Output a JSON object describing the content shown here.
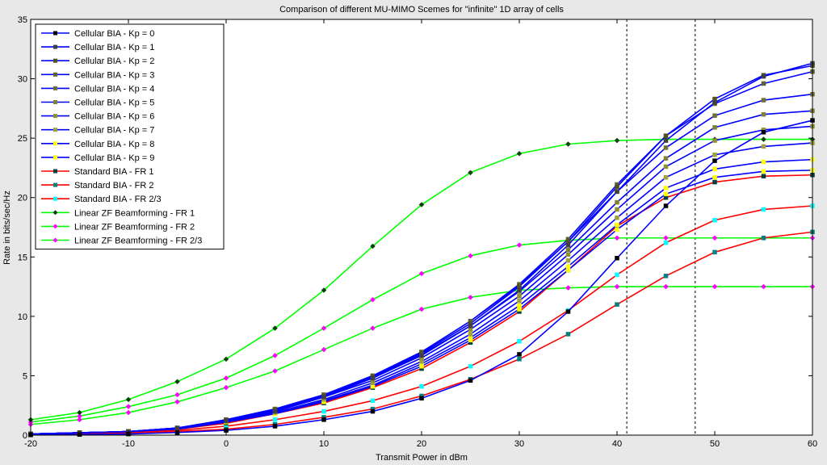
{
  "chart_data": {
    "type": "line",
    "title": "Comparison of different MU-MIMO Scemes for \"infinite\" 1D array of cells",
    "xlabel": "Transmit Power in dBm",
    "ylabel": "Rate in bits/sec/Hz",
    "xlim": [
      -20,
      60
    ],
    "ylim": [
      0,
      35
    ],
    "xticks": [
      -20,
      -10,
      0,
      10,
      20,
      30,
      40,
      50,
      60
    ],
    "yticks": [
      0,
      5,
      10,
      15,
      20,
      25,
      30,
      35
    ],
    "grid": false,
    "legend_position": "top-left",
    "vlines": [
      41,
      48
    ],
    "series": [
      {
        "name": "Cellular BIA - Kp = 0",
        "color": "#0000ff",
        "marker_color": "#000000",
        "marker": "square",
        "x": [
          -20,
          -15,
          -10,
          -5,
          0,
          5,
          10,
          15,
          20,
          25,
          30,
          35,
          40,
          45,
          50,
          55,
          60
        ],
        "y": [
          0.02,
          0.05,
          0.1,
          0.22,
          0.4,
          0.75,
          1.3,
          2.0,
          3.1,
          4.6,
          6.8,
          10.4,
          14.9,
          19.3,
          23.1,
          25.5,
          26.5
        ]
      },
      {
        "name": "Cellular BIA - Kp = 1",
        "color": "#0000ff",
        "marker_color": "#404040",
        "marker": "square",
        "x": [
          -20,
          -15,
          -10,
          -5,
          0,
          5,
          10,
          15,
          20,
          25,
          30,
          35,
          40,
          45,
          50,
          55,
          60
        ],
        "y": [
          0.1,
          0.2,
          0.3,
          0.6,
          1.2,
          2.0,
          3.2,
          4.8,
          6.7,
          9.2,
          12.2,
          16.0,
          20.5,
          24.8,
          28.0,
          30.2,
          31.3
        ]
      },
      {
        "name": "Cellular BIA - Kp = 2",
        "color": "#0000ff",
        "marker_color": "#505020",
        "marker": "square",
        "x": [
          -20,
          -15,
          -10,
          -5,
          0,
          5,
          10,
          15,
          20,
          25,
          30,
          35,
          40,
          45,
          50,
          55,
          60
        ],
        "y": [
          0.1,
          0.2,
          0.3,
          0.6,
          1.25,
          2.1,
          3.3,
          4.9,
          6.9,
          9.4,
          12.5,
          16.3,
          20.9,
          25.2,
          28.3,
          30.3,
          31.1
        ]
      },
      {
        "name": "Cellular BIA - Kp = 3",
        "color": "#0000ff",
        "marker_color": "#606030",
        "marker": "square",
        "x": [
          -20,
          -15,
          -10,
          -5,
          0,
          5,
          10,
          15,
          20,
          25,
          30,
          35,
          40,
          45,
          50,
          55,
          60
        ],
        "y": [
          0.1,
          0.2,
          0.3,
          0.6,
          1.3,
          2.2,
          3.4,
          5.0,
          7.0,
          9.6,
          12.7,
          16.5,
          21.1,
          25.2,
          27.9,
          29.6,
          30.6
        ]
      },
      {
        "name": "Cellular BIA - Kp = 4",
        "color": "#0000ff",
        "marker_color": "#707030",
        "marker": "square",
        "x": [
          -20,
          -15,
          -10,
          -5,
          0,
          5,
          10,
          15,
          20,
          25,
          30,
          35,
          40,
          45,
          50,
          55,
          60
        ],
        "y": [
          0.1,
          0.2,
          0.3,
          0.6,
          1.3,
          2.2,
          3.4,
          5.0,
          7.0,
          9.6,
          12.6,
          16.3,
          20.5,
          24.2,
          26.9,
          28.2,
          28.7
        ]
      },
      {
        "name": "Cellular BIA - Kp = 5",
        "color": "#0000ff",
        "marker_color": "#808030",
        "marker": "square",
        "x": [
          -20,
          -15,
          -10,
          -5,
          0,
          5,
          10,
          15,
          20,
          25,
          30,
          35,
          40,
          45,
          50,
          55,
          60
        ],
        "y": [
          0.1,
          0.2,
          0.3,
          0.6,
          1.25,
          2.1,
          3.3,
          4.8,
          6.8,
          9.2,
          12.1,
          15.6,
          19.6,
          23.3,
          25.9,
          27.0,
          27.3
        ]
      },
      {
        "name": "Cellular BIA - Kp = 6",
        "color": "#0000ff",
        "marker_color": "#909030",
        "marker": "square",
        "x": [
          -20,
          -15,
          -10,
          -5,
          0,
          5,
          10,
          15,
          20,
          25,
          30,
          35,
          40,
          45,
          50,
          55,
          60
        ],
        "y": [
          0.1,
          0.2,
          0.3,
          0.55,
          1.2,
          2.0,
          3.2,
          4.6,
          6.5,
          8.9,
          11.7,
          15.2,
          19.0,
          22.6,
          24.8,
          25.7,
          26.0
        ]
      },
      {
        "name": "Cellular BIA - Kp = 7",
        "color": "#0000ff",
        "marker_color": "#a0a040",
        "marker": "square",
        "x": [
          -20,
          -15,
          -10,
          -5,
          0,
          5,
          10,
          15,
          20,
          25,
          30,
          35,
          40,
          45,
          50,
          55,
          60
        ],
        "y": [
          0.1,
          0.2,
          0.3,
          0.55,
          1.15,
          1.9,
          3.0,
          4.4,
          6.2,
          8.5,
          11.3,
          14.7,
          18.3,
          21.7,
          23.6,
          24.3,
          24.6
        ]
      },
      {
        "name": "Cellular BIA - Kp = 8",
        "color": "#0000ff",
        "marker_color": "#ffff00",
        "marker": "square",
        "x": [
          -20,
          -15,
          -10,
          -5,
          0,
          5,
          10,
          15,
          20,
          25,
          30,
          35,
          40,
          45,
          50,
          55,
          60
        ],
        "y": [
          0.1,
          0.2,
          0.3,
          0.5,
          1.1,
          1.8,
          2.9,
          4.2,
          6.0,
          8.2,
          10.9,
          14.2,
          17.7,
          20.8,
          22.4,
          23.0,
          23.2
        ]
      },
      {
        "name": "Cellular BIA - Kp = 9",
        "color": "#0000ff",
        "marker_color": "#ffff00",
        "marker": "square",
        "x": [
          -20,
          -15,
          -10,
          -5,
          0,
          5,
          10,
          15,
          20,
          25,
          30,
          35,
          40,
          45,
          50,
          55,
          60
        ],
        "y": [
          0.1,
          0.2,
          0.3,
          0.5,
          1.1,
          1.8,
          2.8,
          4.1,
          5.8,
          8.0,
          10.6,
          13.9,
          17.3,
          20.3,
          21.7,
          22.2,
          22.3
        ]
      },
      {
        "name": "Standard BIA - FR 1",
        "color": "#ff0000",
        "marker_color": "#004040",
        "marker": "square",
        "x": [
          -20,
          -15,
          -10,
          -5,
          0,
          5,
          10,
          15,
          20,
          25,
          30,
          35,
          40,
          45,
          50,
          55,
          60
        ],
        "y": [
          0.1,
          0.2,
          0.3,
          0.5,
          1.0,
          1.8,
          2.7,
          4.0,
          5.6,
          7.8,
          10.4,
          13.9,
          17.6,
          20.0,
          21.3,
          21.8,
          21.9
        ]
      },
      {
        "name": "Standard BIA - FR 2",
        "color": "#ff0000",
        "marker_color": "#008080",
        "marker": "square",
        "x": [
          -20,
          -15,
          -10,
          -5,
          0,
          5,
          10,
          15,
          20,
          25,
          30,
          35,
          40,
          45,
          50,
          55,
          60
        ],
        "y": [
          0.02,
          0.05,
          0.1,
          0.3,
          0.5,
          0.9,
          1.5,
          2.2,
          3.3,
          4.7,
          6.4,
          8.5,
          11.0,
          13.4,
          15.4,
          16.6,
          17.1
        ]
      },
      {
        "name": "Standard BIA - FR 2/3",
        "color": "#ff0000",
        "marker_color": "#00ffff",
        "marker": "square",
        "x": [
          -20,
          -15,
          -10,
          -5,
          0,
          5,
          10,
          15,
          20,
          25,
          30,
          35,
          40,
          45,
          50,
          55,
          60
        ],
        "y": [
          0.05,
          0.1,
          0.2,
          0.4,
          0.75,
          1.3,
          2.0,
          2.9,
          4.1,
          5.8,
          7.9,
          10.5,
          13.5,
          16.2,
          18.1,
          19.0,
          19.3
        ]
      },
      {
        "name": "Linear ZF Beamforming - FR 1",
        "color": "#00ff00",
        "marker_color": "#004000",
        "marker": "diamond",
        "x": [
          -20,
          -15,
          -10,
          -5,
          0,
          5,
          10,
          15,
          20,
          25,
          30,
          35,
          40,
          45,
          50,
          55,
          60
        ],
        "y": [
          1.3,
          1.9,
          3.0,
          4.5,
          6.4,
          9.0,
          12.2,
          15.9,
          19.4,
          22.1,
          23.7,
          24.5,
          24.8,
          24.9,
          24.9,
          24.9,
          24.9
        ]
      },
      {
        "name": "Linear ZF Beamforming - FR 2",
        "color": "#00ff00",
        "marker_color": "#ff00ff",
        "marker": "diamond",
        "x": [
          -20,
          -15,
          -10,
          -5,
          0,
          5,
          10,
          15,
          20,
          25,
          30,
          35,
          40,
          45,
          50,
          55,
          60
        ],
        "y": [
          0.9,
          1.3,
          1.9,
          2.8,
          4.0,
          5.4,
          7.2,
          9.0,
          10.6,
          11.6,
          12.2,
          12.4,
          12.5,
          12.5,
          12.5,
          12.5,
          12.5
        ]
      },
      {
        "name": "Linear ZF Beamforming - FR 2/3",
        "color": "#00ff00",
        "marker_color": "#ff00ff",
        "marker": "diamond",
        "x": [
          -20,
          -15,
          -10,
          -5,
          0,
          5,
          10,
          15,
          20,
          25,
          30,
          35,
          40,
          45,
          50,
          55,
          60
        ],
        "y": [
          1.1,
          1.6,
          2.4,
          3.4,
          4.8,
          6.7,
          9.0,
          11.4,
          13.6,
          15.1,
          16.0,
          16.4,
          16.6,
          16.6,
          16.6,
          16.6,
          16.6
        ]
      }
    ]
  }
}
